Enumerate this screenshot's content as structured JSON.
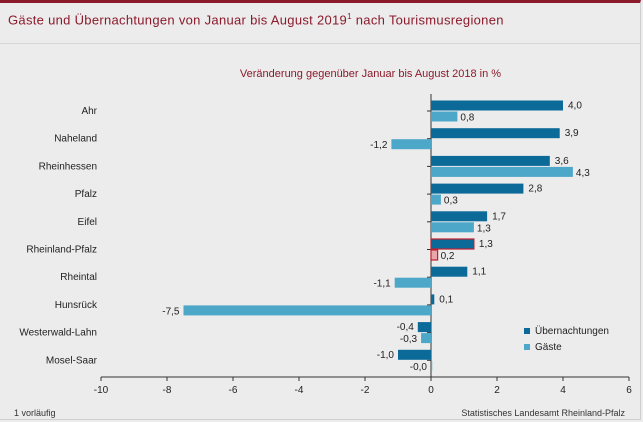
{
  "header": {
    "title_main": "Gäste und Übernachtungen von Januar bis August 2019",
    "title_sup": "1",
    "title_rest": " nach Tourismusregionen"
  },
  "footer": {
    "footnote": "1 vorläufig",
    "source": "Statistisches Landesamt Rheinland-Pfalz"
  },
  "colors": {
    "uebernachtungen": "#0b6a98",
    "gaeste": "#4ca7c8",
    "highlight_outline": "#c0202e",
    "highlight_fill": "#e8a8aa",
    "accent": "#8b1a2b"
  },
  "chart_data": {
    "type": "bar",
    "orientation": "horizontal",
    "title": "Veränderung  gegenüber Januar bis August 2018 in %",
    "xlim": [
      -10,
      6
    ],
    "xticks": [
      -10,
      -8,
      -6,
      -4,
      -2,
      0,
      2,
      4,
      6
    ],
    "categories": [
      "Ahr",
      "Naheland",
      "Rheinhessen",
      "Pfalz",
      "Eifel",
      "Rheinland-Pfalz",
      "Rheintal",
      "Hunsrück",
      "Westerwald-Lahn",
      "Mosel-Saar"
    ],
    "highlight_category": "Rheinland-Pfalz",
    "series": [
      {
        "name": "Übernachtungen",
        "values": [
          4.0,
          3.9,
          3.6,
          2.8,
          1.7,
          1.3,
          1.1,
          0.1,
          -0.4,
          -1.0
        ],
        "labels": [
          "4,0",
          "3,9",
          "3,6",
          "2,8",
          "1,7",
          "1,3",
          "1,1",
          "0,1",
          "-0,4",
          "-1,0"
        ]
      },
      {
        "name": "Gäste",
        "values": [
          0.8,
          -1.2,
          4.3,
          0.3,
          1.3,
          0.2,
          -1.1,
          -7.5,
          -0.3,
          -0.0
        ],
        "labels": [
          "0,8",
          "-1,2",
          "4,3",
          "0,3",
          "1,3",
          "0,2",
          "-1,1",
          "-7,5",
          "-0,3",
          "-0,0"
        ]
      }
    ],
    "legend_position": "right",
    "grid": false
  }
}
